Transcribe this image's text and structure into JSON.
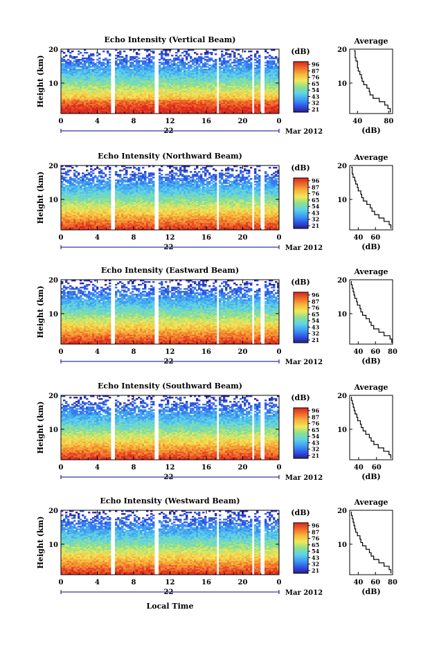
{
  "chart_data": {
    "type": "heatmap",
    "xlabel": "Local Time",
    "date_label": "Mar 2012",
    "day_label": "22",
    "x_ticks": [
      "0",
      "4",
      "8",
      "12",
      "16",
      "20",
      "0"
    ],
    "xlim": [
      0,
      24
    ],
    "colorbar": {
      "unit": "(dB)",
      "ticks": [
        "96",
        "87",
        "76",
        "65",
        "54",
        "43",
        "32",
        "21"
      ],
      "colors": [
        "#2b1b8f",
        "#2f57ea",
        "#3fa0f2",
        "#5fd3e8",
        "#8fe08a",
        "#f0e85a",
        "#f7b53b",
        "#f06a2a",
        "#d9261e"
      ]
    },
    "panels": [
      {
        "title": "Echo Intensity (Vertical Beam)",
        "ylabel": "Height (km)",
        "y_ticks": [
          "20",
          "10"
        ],
        "ylim": [
          1,
          20
        ],
        "avg_title": "Average",
        "avg_xlabel": "(dB)",
        "avg_x_ticks": [
          "40",
          "80"
        ],
        "avg_xlim": [
          30,
          85
        ],
        "average_profile": [
          {
            "db": 82,
            "h": 1.5
          },
          {
            "db": 79,
            "h": 2.5
          },
          {
            "db": 75,
            "h": 3.5
          },
          {
            "db": 68,
            "h": 4.5
          },
          {
            "db": 60,
            "h": 5.5
          },
          {
            "db": 56,
            "h": 6.5
          },
          {
            "db": 55,
            "h": 7.5
          },
          {
            "db": 52,
            "h": 8.5
          },
          {
            "db": 48,
            "h": 9.5
          },
          {
            "db": 46,
            "h": 10.5
          },
          {
            "db": 45,
            "h": 11.5
          },
          {
            "db": 43,
            "h": 12.5
          },
          {
            "db": 41,
            "h": 13.5
          },
          {
            "db": 40,
            "h": 14.5
          },
          {
            "db": 40,
            "h": 15.5
          },
          {
            "db": 38,
            "h": 16.5
          },
          {
            "db": 37,
            "h": 17.5
          },
          {
            "db": 37,
            "h": 18.5
          },
          {
            "db": 36,
            "h": 19.5
          }
        ]
      },
      {
        "title": "Echo Intensity (Northward Beam)",
        "ylabel": "Height (km)",
        "y_ticks": [
          "20",
          "10"
        ],
        "ylim": [
          1,
          20
        ],
        "avg_title": "Average",
        "avg_xlabel": "(dB)",
        "avg_x_ticks": [
          "40",
          "60"
        ],
        "avg_xlim": [
          30,
          80
        ],
        "average_profile": [
          {
            "db": 78,
            "h": 1.5
          },
          {
            "db": 76,
            "h": 2.5
          },
          {
            "db": 70,
            "h": 3.5
          },
          {
            "db": 64,
            "h": 4.5
          },
          {
            "db": 59,
            "h": 5.5
          },
          {
            "db": 56,
            "h": 6.5
          },
          {
            "db": 54,
            "h": 7.5
          },
          {
            "db": 50,
            "h": 8.5
          },
          {
            "db": 46,
            "h": 9.5
          },
          {
            "db": 44,
            "h": 10.5
          },
          {
            "db": 43,
            "h": 11.5
          },
          {
            "db": 40,
            "h": 12.5
          },
          {
            "db": 39,
            "h": 13.5
          },
          {
            "db": 37,
            "h": 14.5
          },
          {
            "db": 36,
            "h": 15.5
          },
          {
            "db": 34,
            "h": 16.5
          },
          {
            "db": 33,
            "h": 17.5
          },
          {
            "db": 33,
            "h": 18.5
          },
          {
            "db": 32,
            "h": 19.5
          }
        ]
      },
      {
        "title": "Echo Intensity (Eastward Beam)",
        "ylabel": "Height (km)",
        "y_ticks": [
          "20",
          "10"
        ],
        "ylim": [
          1,
          20
        ],
        "avg_title": "Average",
        "avg_xlabel": "(dB)",
        "avg_x_ticks": [
          "40",
          "60",
          "80"
        ],
        "avg_xlim": [
          30,
          80
        ],
        "average_profile": [
          {
            "db": 79,
            "h": 1.5
          },
          {
            "db": 77,
            "h": 2.5
          },
          {
            "db": 70,
            "h": 3.5
          },
          {
            "db": 64,
            "h": 4.5
          },
          {
            "db": 58,
            "h": 5.5
          },
          {
            "db": 55,
            "h": 6.5
          },
          {
            "db": 53,
            "h": 7.5
          },
          {
            "db": 49,
            "h": 8.5
          },
          {
            "db": 45,
            "h": 9.5
          },
          {
            "db": 43,
            "h": 10.5
          },
          {
            "db": 42,
            "h": 11.5
          },
          {
            "db": 39,
            "h": 12.5
          },
          {
            "db": 38,
            "h": 13.5
          },
          {
            "db": 36,
            "h": 14.5
          },
          {
            "db": 35,
            "h": 15.5
          },
          {
            "db": 34,
            "h": 16.5
          },
          {
            "db": 33,
            "h": 17.5
          },
          {
            "db": 32,
            "h": 18.5
          },
          {
            "db": 32,
            "h": 19.5
          }
        ]
      },
      {
        "title": "Echo Intensity (Southward Beam)",
        "ylabel": "Height (km)",
        "y_ticks": [
          "20",
          "10"
        ],
        "ylim": [
          1,
          20
        ],
        "avg_title": "Average",
        "avg_xlabel": "(dB)",
        "avg_x_ticks": [
          "40",
          "60"
        ],
        "avg_xlim": [
          30,
          78
        ],
        "average_profile": [
          {
            "db": 76,
            "h": 1.5
          },
          {
            "db": 74,
            "h": 2.5
          },
          {
            "db": 68,
            "h": 3.5
          },
          {
            "db": 62,
            "h": 4.5
          },
          {
            "db": 57,
            "h": 5.5
          },
          {
            "db": 54,
            "h": 6.5
          },
          {
            "db": 52,
            "h": 7.5
          },
          {
            "db": 48,
            "h": 8.5
          },
          {
            "db": 45,
            "h": 9.5
          },
          {
            "db": 43,
            "h": 10.5
          },
          {
            "db": 42,
            "h": 11.5
          },
          {
            "db": 39,
            "h": 12.5
          },
          {
            "db": 38,
            "h": 13.5
          },
          {
            "db": 36,
            "h": 14.5
          },
          {
            "db": 35,
            "h": 15.5
          },
          {
            "db": 34,
            "h": 16.5
          },
          {
            "db": 33,
            "h": 17.5
          },
          {
            "db": 32,
            "h": 18.5
          },
          {
            "db": 32,
            "h": 19.5
          }
        ]
      },
      {
        "title": "Echo Intensity (Westward Beam)",
        "ylabel": "Height (km)",
        "y_ticks": [
          "20",
          "10"
        ],
        "ylim": [
          1,
          20
        ],
        "avg_title": "Average",
        "avg_xlabel": "(dB)",
        "avg_x_ticks": [
          "40",
          "60",
          "80"
        ],
        "avg_xlim": [
          30,
          80
        ],
        "average_profile": [
          {
            "db": 78,
            "h": 1.5
          },
          {
            "db": 76,
            "h": 2.5
          },
          {
            "db": 70,
            "h": 3.5
          },
          {
            "db": 64,
            "h": 4.5
          },
          {
            "db": 58,
            "h": 5.5
          },
          {
            "db": 55,
            "h": 6.5
          },
          {
            "db": 53,
            "h": 7.5
          },
          {
            "db": 49,
            "h": 8.5
          },
          {
            "db": 45,
            "h": 9.5
          },
          {
            "db": 43,
            "h": 10.5
          },
          {
            "db": 42,
            "h": 11.5
          },
          {
            "db": 39,
            "h": 12.5
          },
          {
            "db": 37,
            "h": 13.5
          },
          {
            "db": 36,
            "h": 14.5
          },
          {
            "db": 35,
            "h": 15.5
          },
          {
            "db": 34,
            "h": 16.5
          },
          {
            "db": 33,
            "h": 17.5
          },
          {
            "db": 32,
            "h": 18.5
          },
          {
            "db": 32,
            "h": 19.5
          }
        ]
      }
    ]
  }
}
